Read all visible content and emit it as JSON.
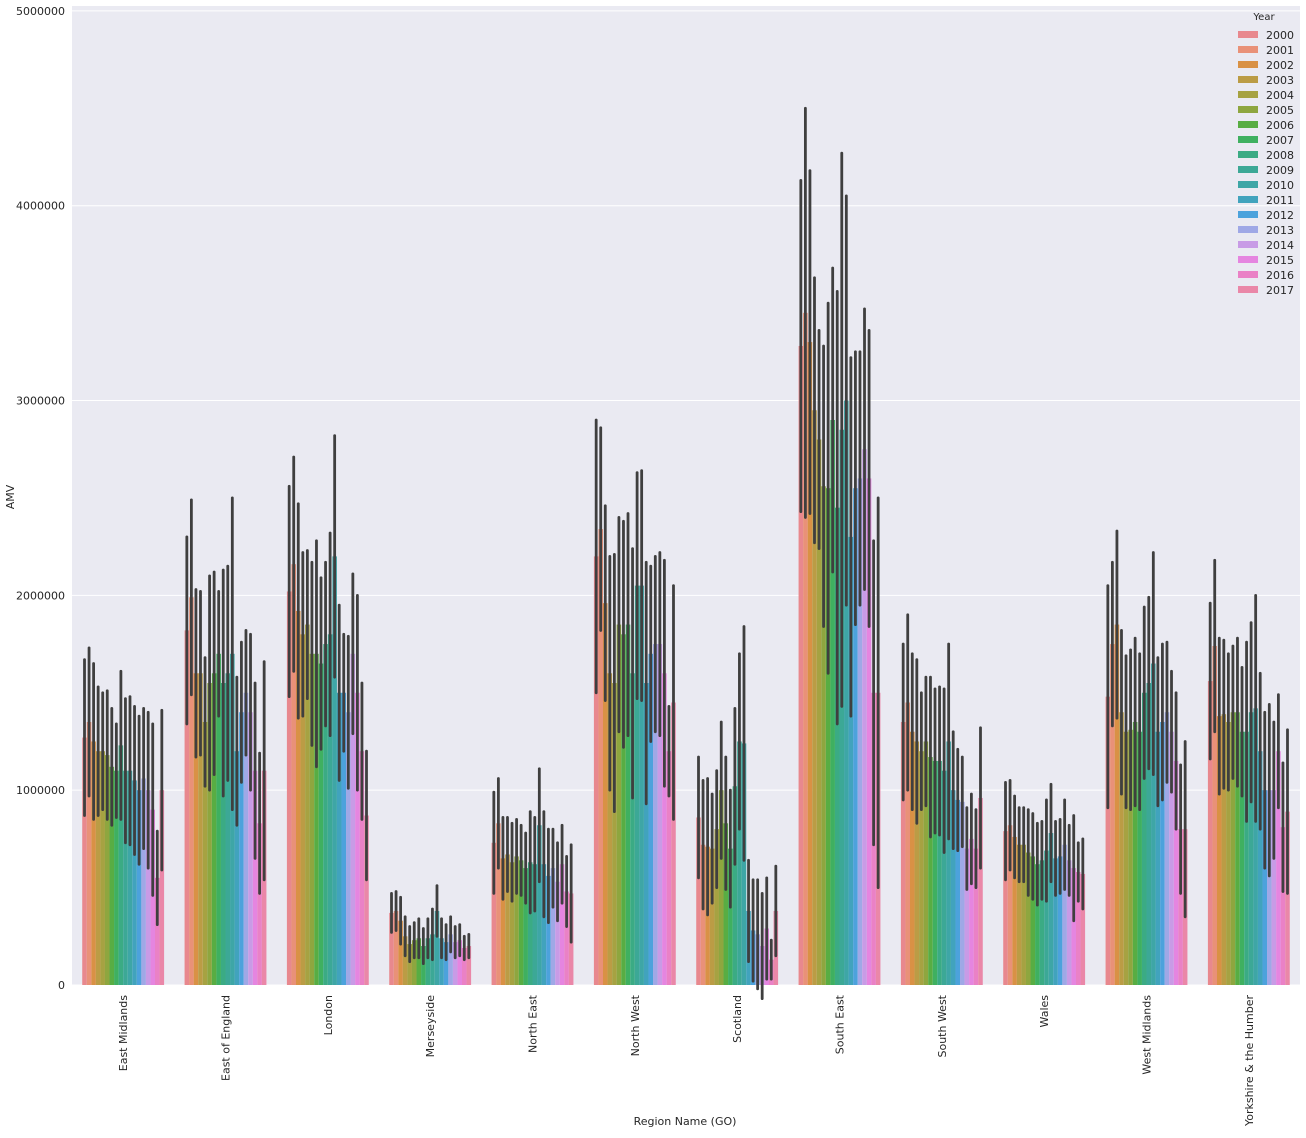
{
  "chart_data": {
    "type": "bar",
    "x_label": "Region Name (GO)",
    "y_label": "AMV",
    "legend_title": "Year",
    "legend": "upper right",
    "grid": true,
    "categories": [
      "East Midlands",
      "East of England",
      "London",
      "Merseyside",
      "North East",
      "North West",
      "Scotland",
      "South East",
      "South West",
      "Wales",
      "West Midlands",
      "Yorkshire & the Humber"
    ],
    "ylim": [
      0,
      5025000
    ],
    "yticks": [
      0,
      1000000,
      2000000,
      3000000,
      4000000,
      5000000
    ],
    "series": [
      {
        "name": "2000",
        "color": "#e8888e",
        "values": [
          1270000,
          1820000,
          2020000,
          370000,
          730000,
          2200000,
          860000,
          3280000,
          1350000,
          790000,
          1480000,
          1560000
        ],
        "errors": [
          400000,
          480000,
          540000,
          100000,
          260000,
          700000,
          310000,
          850000,
          400000,
          250000,
          570000,
          400000
        ]
      },
      {
        "name": "2001",
        "color": "#e99178",
        "values": [
          1350000,
          1990000,
          2160000,
          380000,
          830000,
          2340000,
          720000,
          3450000,
          1450000,
          820000,
          1750000,
          1740000
        ],
        "errors": [
          380000,
          500000,
          550000,
          100000,
          230000,
          520000,
          330000,
          1050000,
          450000,
          230000,
          420000,
          440000
        ]
      },
      {
        "name": "2002",
        "color": "#d99145",
        "values": [
          1250000,
          1600000,
          1920000,
          330000,
          650000,
          1960000,
          710000,
          3300000,
          1300000,
          760000,
          1850000,
          1380000
        ],
        "errors": [
          400000,
          430000,
          550000,
          120000,
          210000,
          500000,
          350000,
          880000,
          400000,
          210000,
          480000,
          400000
        ]
      },
      {
        "name": "2003",
        "color": "#bb9c45",
        "values": [
          1200000,
          1600000,
          1800000,
          250000,
          670000,
          1600000,
          700000,
          2950000,
          1250000,
          720000,
          1400000,
          1390000
        ],
        "errors": [
          330000,
          420000,
          420000,
          100000,
          190000,
          600000,
          280000,
          680000,
          420000,
          190000,
          420000,
          380000
        ]
      },
      {
        "name": "2004",
        "color": "#a6a242",
        "values": [
          1200000,
          1350000,
          1850000,
          210000,
          630000,
          1550000,
          800000,
          2800000,
          1200000,
          720000,
          1300000,
          1350000
        ],
        "errors": [
          300000,
          330000,
          380000,
          90000,
          200000,
          660000,
          300000,
          560000,
          300000,
          190000,
          390000,
          350000
        ]
      },
      {
        "name": "2005",
        "color": "#8ea63f",
        "values": [
          1180000,
          1550000,
          1700000,
          230000,
          660000,
          1850000,
          1000000,
          2560000,
          1250000,
          680000,
          1310000,
          1400000
        ],
        "errors": [
          330000,
          550000,
          470000,
          90000,
          190000,
          550000,
          350000,
          720000,
          330000,
          220000,
          410000,
          340000
        ]
      },
      {
        "name": "2006",
        "color": "#58ad43",
        "values": [
          1120000,
          1600000,
          1700000,
          240000,
          640000,
          1800000,
          830000,
          2550000,
          1170000,
          660000,
          1350000,
          1400000
        ],
        "errors": [
          300000,
          520000,
          580000,
          100000,
          180000,
          580000,
          340000,
          950000,
          410000,
          220000,
          430000,
          380000
        ]
      },
      {
        "name": "2007",
        "color": "#3fb060",
        "values": [
          1100000,
          1700000,
          1650000,
          200000,
          600000,
          1850000,
          700000,
          2900000,
          1150000,
          620000,
          1300000,
          1300000
        ],
        "errors": [
          240000,
          320000,
          440000,
          90000,
          180000,
          570000,
          300000,
          780000,
          370000,
          210000,
          400000,
          330000
        ]
      },
      {
        "name": "2008",
        "color": "#3bab84",
        "values": [
          1230000,
          1550000,
          1750000,
          240000,
          630000,
          1600000,
          1020000,
          2450000,
          1150000,
          640000,
          1500000,
          1300000
        ],
        "errors": [
          380000,
          580000,
          420000,
          100000,
          260000,
          640000,
          400000,
          1110000,
          380000,
          200000,
          440000,
          460000
        ]
      },
      {
        "name": "2009",
        "color": "#3ca896",
        "values": [
          1100000,
          1600000,
          1800000,
          260000,
          620000,
          2050000,
          1250000,
          2850000,
          1100000,
          690000,
          1550000,
          1400000
        ],
        "errors": [
          370000,
          550000,
          520000,
          130000,
          240000,
          580000,
          450000,
          1420000,
          420000,
          260000,
          440000,
          460000
        ]
      },
      {
        "name": "2010",
        "color": "#3ea6a6",
        "values": [
          1100000,
          1700000,
          2200000,
          380000,
          820000,
          2050000,
          1240000,
          3000000,
          1250000,
          780000,
          1650000,
          1420000
        ],
        "errors": [
          380000,
          800000,
          620000,
          130000,
          290000,
          590000,
          600000,
          1050000,
          500000,
          250000,
          570000,
          580000
        ]
      },
      {
        "name": "2011",
        "color": "#41a3bd",
        "values": [
          1050000,
          1200000,
          1500000,
          240000,
          620000,
          1550000,
          380000,
          2300000,
          1000000,
          650000,
          1300000,
          1200000
        ],
        "errors": [
          380000,
          380000,
          450000,
          100000,
          270000,
          620000,
          260000,
          920000,
          300000,
          190000,
          380000,
          400000
        ]
      },
      {
        "name": "2012",
        "color": "#4ca2dc",
        "values": [
          1000000,
          1400000,
          1500000,
          220000,
          560000,
          1700000,
          280000,
          2550000,
          950000,
          660000,
          1350000,
          1000000
        ],
        "errors": [
          380000,
          360000,
          300000,
          90000,
          240000,
          450000,
          260000,
          700000,
          260000,
          190000,
          400000,
          400000
        ]
      },
      {
        "name": "2013",
        "color": "#9fa8e6",
        "values": [
          1060000,
          1500000,
          1400000,
          260000,
          600000,
          1750000,
          260000,
          2600000,
          940000,
          720000,
          1400000,
          1000000
        ],
        "errors": [
          360000,
          320000,
          390000,
          90000,
          200000,
          450000,
          280000,
          650000,
          230000,
          230000,
          360000,
          440000
        ]
      },
      {
        "name": "2014",
        "color": "#c89be6",
        "values": [
          1000000,
          1400000,
          1700000,
          220000,
          530000,
          1750000,
          200000,
          2750000,
          700000,
          640000,
          1300000,
          1000000
        ],
        "errors": [
          400000,
          400000,
          410000,
          80000,
          200000,
          470000,
          270000,
          720000,
          210000,
          180000,
          310000,
          350000
        ]
      },
      {
        "name": "2015",
        "color": "#e585e0",
        "values": [
          900000,
          1100000,
          1500000,
          230000,
          620000,
          1600000,
          290000,
          2600000,
          750000,
          600000,
          1150000,
          1200000
        ],
        "errors": [
          440000,
          450000,
          500000,
          80000,
          200000,
          580000,
          260000,
          760000,
          230000,
          270000,
          350000,
          290000
        ]
      },
      {
        "name": "2016",
        "color": "#ea81c6",
        "values": [
          550000,
          830000,
          1200000,
          190000,
          480000,
          1200000,
          130000,
          1500000,
          700000,
          580000,
          800000,
          810000
        ],
        "errors": [
          240000,
          360000,
          350000,
          60000,
          180000,
          230000,
          100000,
          780000,
          200000,
          150000,
          330000,
          330000
        ]
      },
      {
        "name": "2017",
        "color": "#ea87a8",
        "values": [
          1000000,
          1100000,
          870000,
          200000,
          470000,
          1450000,
          380000,
          1500000,
          960000,
          570000,
          800000,
          890000
        ],
        "errors": [
          410000,
          560000,
          330000,
          60000,
          250000,
          600000,
          230000,
          1000000,
          360000,
          180000,
          450000,
          420000
        ]
      }
    ]
  }
}
